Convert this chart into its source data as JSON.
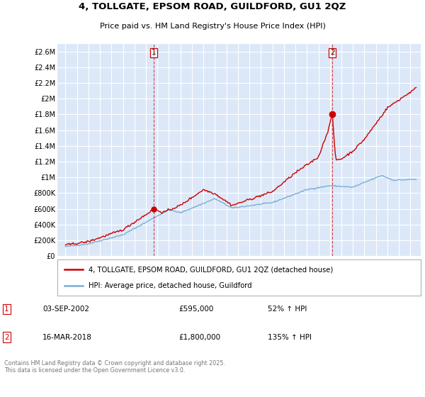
{
  "title": "4, TOLLGATE, EPSOM ROAD, GUILDFORD, GU1 2QZ",
  "subtitle": "Price paid vs. HM Land Registry's House Price Index (HPI)",
  "plot_bg_color": "#dce8f8",
  "grid_color": "#ffffff",
  "red_color": "#cc0000",
  "blue_color": "#7bafd4",
  "ylim": [
    0,
    2700000
  ],
  "yticks": [
    0,
    200000,
    400000,
    600000,
    800000,
    1000000,
    1200000,
    1400000,
    1600000,
    1800000,
    2000000,
    2200000,
    2400000,
    2600000
  ],
  "ytick_labels": [
    "£0",
    "£200K",
    "£400K",
    "£600K",
    "£800K",
    "£1M",
    "£1.2M",
    "£1.4M",
    "£1.6M",
    "£1.8M",
    "£2M",
    "£2.2M",
    "£2.4M",
    "£2.6M"
  ],
  "sale1_x": 2002.67,
  "sale1_price": 595000,
  "sale1_label": "1",
  "sale1_date": "03-SEP-2002",
  "sale1_pct": "52% ↑ HPI",
  "sale2_x": 2018.21,
  "sale2_price": 1800000,
  "sale2_label": "2",
  "sale2_date": "16-MAR-2018",
  "sale2_pct": "135% ↑ HPI",
  "legend_house": "4, TOLLGATE, EPSOM ROAD, GUILDFORD, GU1 2QZ (detached house)",
  "legend_hpi": "HPI: Average price, detached house, Guildford",
  "footer": "Contains HM Land Registry data © Crown copyright and database right 2025.\nThis data is licensed under the Open Government Licence v3.0."
}
